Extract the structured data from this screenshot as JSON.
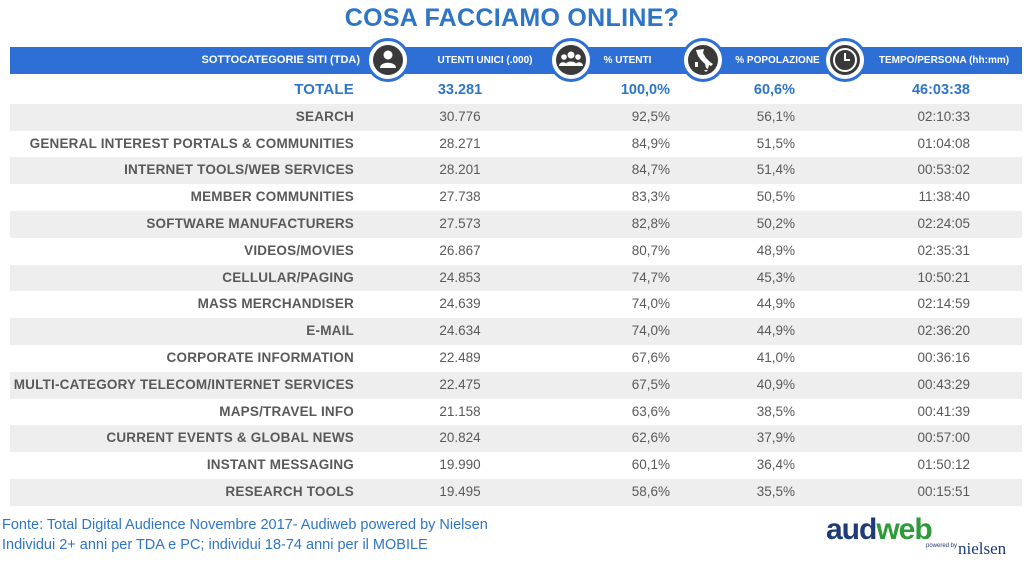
{
  "title": "COSA FACCIAMO ONLINE?",
  "header": {
    "category": "SOTTOCATEGORIE SITI  (TDA)",
    "col1": "UTENTI UNICI (.000)",
    "col2": "% UTENTI",
    "col3": "% POPOLAZIONE",
    "col4": "TEMPO/PERSONA (hh:mm)"
  },
  "icons": [
    "person-icon",
    "group-icon",
    "italy-map-icon",
    "clock-icon"
  ],
  "total": {
    "label": "TOTALE",
    "users": "33.281",
    "pct_users": "100,0%",
    "pct_pop": "60,6%",
    "time": "46:03:38"
  },
  "rows": [
    {
      "label": "SEARCH",
      "users": "30.776",
      "pct_users": "92,5%",
      "pct_pop": "56,1%",
      "time": "02:10:33"
    },
    {
      "label": "GENERAL INTEREST PORTALS & COMMUNITIES",
      "users": "28.271",
      "pct_users": "84,9%",
      "pct_pop": "51,5%",
      "time": "01:04:08"
    },
    {
      "label": "INTERNET TOOLS/WEB SERVICES",
      "users": "28.201",
      "pct_users": "84,7%",
      "pct_pop": "51,4%",
      "time": "00:53:02"
    },
    {
      "label": "MEMBER COMMUNITIES",
      "users": "27.738",
      "pct_users": "83,3%",
      "pct_pop": "50,5%",
      "time": "11:38:40"
    },
    {
      "label": "SOFTWARE MANUFACTURERS",
      "users": "27.573",
      "pct_users": "82,8%",
      "pct_pop": "50,2%",
      "time": "02:24:05"
    },
    {
      "label": "VIDEOS/MOVIES",
      "users": "26.867",
      "pct_users": "80,7%",
      "pct_pop": "48,9%",
      "time": "02:35:31"
    },
    {
      "label": "CELLULAR/PAGING",
      "users": "24.853",
      "pct_users": "74,7%",
      "pct_pop": "45,3%",
      "time": "10:50:21"
    },
    {
      "label": "MASS MERCHANDISER",
      "users": "24.639",
      "pct_users": "74,0%",
      "pct_pop": "44,9%",
      "time": "02:14:59"
    },
    {
      "label": "E-MAIL",
      "users": "24.634",
      "pct_users": "74,0%",
      "pct_pop": "44,9%",
      "time": "02:36:20"
    },
    {
      "label": "CORPORATE INFORMATION",
      "users": "22.489",
      "pct_users": "67,6%",
      "pct_pop": "41,0%",
      "time": "00:36:16"
    },
    {
      "label": "MULTI-CATEGORY TELECOM/INTERNET SERVICES",
      "users": "22.475",
      "pct_users": "67,5%",
      "pct_pop": "40,9%",
      "time": "00:43:29"
    },
    {
      "label": "MAPS/TRAVEL INFO",
      "users": "21.158",
      "pct_users": "63,6%",
      "pct_pop": "38,5%",
      "time": "00:41:39"
    },
    {
      "label": "CURRENT EVENTS & GLOBAL NEWS",
      "users": "20.824",
      "pct_users": "62,6%",
      "pct_pop": "37,9%",
      "time": "00:57:00"
    },
    {
      "label": "INSTANT MESSAGING",
      "users": "19.990",
      "pct_users": "60,1%",
      "pct_pop": "36,4%",
      "time": "01:50:12"
    },
    {
      "label": "RESEARCH TOOLS",
      "users": "19.495",
      "pct_users": "58,6%",
      "pct_pop": "35,5%",
      "time": "00:15:51"
    }
  ],
  "footer": {
    "line1": "Fonte: Total Digital Audience Novembre 2017- Audiweb powered by Nielsen",
    "line2": "Individui 2+ anni per TDA e PC; individui 18-74 anni per il MOBILE"
  },
  "logo": {
    "aud": "aud",
    "web": "web",
    "powered": "powered by",
    "nielsen": "nielsen"
  },
  "colors": {
    "accent": "#2e6fd6",
    "title": "#2e75c6",
    "row_alt": "#eeeeee",
    "text": "#595959"
  }
}
